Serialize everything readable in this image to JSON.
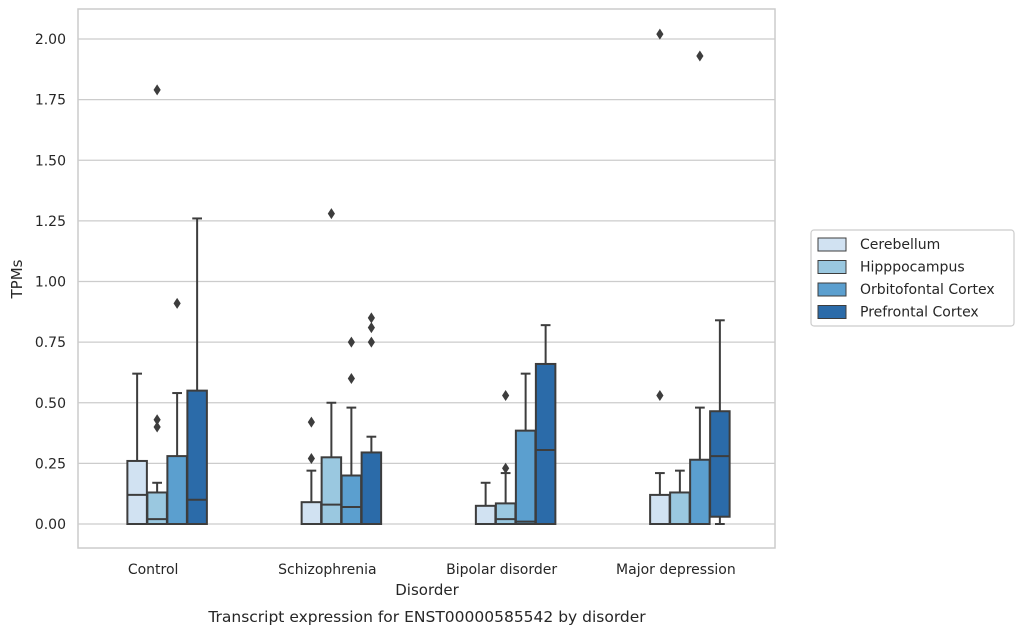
{
  "chart_data": {
    "type": "boxplot",
    "title": "Transcript expression for ENST00000585542 by disorder",
    "xlabel": "Disorder",
    "ylabel": "TPMs",
    "ylim": [
      -0.1,
      2.12
    ],
    "yticks": [
      "0.00",
      "0.25",
      "0.50",
      "0.75",
      "1.00",
      "1.25",
      "1.50",
      "1.75",
      "2.00"
    ],
    "categories": [
      "Control",
      "Schizophrenia",
      "Bipolar disorder",
      "Major depression"
    ],
    "grid": "horizontal",
    "legend_position": "right",
    "series": [
      {
        "name": "Cerebellum",
        "color": "#d1e2f2",
        "boxes": [
          {
            "whislo": 0.0,
            "q1": 0.0,
            "med": 0.12,
            "q3": 0.26,
            "whishi": 0.62,
            "fliers": []
          },
          {
            "whislo": 0.0,
            "q1": 0.0,
            "med": 0.0,
            "q3": 0.09,
            "whishi": 0.22,
            "fliers": [
              0.27,
              0.42
            ]
          },
          {
            "whislo": 0.0,
            "q1": 0.0,
            "med": 0.0,
            "q3": 0.075,
            "whishi": 0.17,
            "fliers": []
          },
          {
            "whislo": 0.0,
            "q1": 0.0,
            "med": 0.0,
            "q3": 0.12,
            "whishi": 0.21,
            "fliers": [
              0.53,
              2.02
            ]
          }
        ]
      },
      {
        "name": "Hipppocampus",
        "color": "#9ac8e0",
        "boxes": [
          {
            "whislo": 0.0,
            "q1": 0.0,
            "med": 0.02,
            "q3": 0.13,
            "whishi": 0.17,
            "fliers": [
              0.4,
              0.43,
              1.79
            ]
          },
          {
            "whislo": 0.0,
            "q1": 0.0,
            "med": 0.08,
            "q3": 0.275,
            "whishi": 0.5,
            "fliers": [
              1.28
            ]
          },
          {
            "whislo": 0.0,
            "q1": 0.0,
            "med": 0.02,
            "q3": 0.085,
            "whishi": 0.21,
            "fliers": [
              0.23,
              0.53
            ]
          },
          {
            "whislo": 0.0,
            "q1": 0.0,
            "med": 0.0,
            "q3": 0.13,
            "whishi": 0.22,
            "fliers": []
          }
        ]
      },
      {
        "name": "Orbitofontal Cortex",
        "color": "#5b9fcf",
        "boxes": [
          {
            "whislo": 0.0,
            "q1": 0.0,
            "med": 0.0,
            "q3": 0.28,
            "whishi": 0.54,
            "fliers": [
              0.91
            ]
          },
          {
            "whislo": 0.0,
            "q1": 0.0,
            "med": 0.07,
            "q3": 0.2,
            "whishi": 0.48,
            "fliers": [
              0.6,
              0.75
            ]
          },
          {
            "whislo": 0.0,
            "q1": 0.0,
            "med": 0.01,
            "q3": 0.385,
            "whishi": 0.62,
            "fliers": []
          },
          {
            "whislo": 0.0,
            "q1": 0.0,
            "med": 0.0,
            "q3": 0.265,
            "whishi": 0.48,
            "fliers": [
              1.93
            ]
          }
        ]
      },
      {
        "name": "Prefrontal Cortex",
        "color": "#2b6ba9",
        "boxes": [
          {
            "whislo": 0.0,
            "q1": 0.0,
            "med": 0.1,
            "q3": 0.55,
            "whishi": 1.26,
            "fliers": []
          },
          {
            "whislo": 0.0,
            "q1": 0.0,
            "med": 0.0,
            "q3": 0.295,
            "whishi": 0.36,
            "fliers": [
              0.75,
              0.81,
              0.85
            ]
          },
          {
            "whislo": 0.0,
            "q1": 0.0,
            "med": 0.305,
            "q3": 0.66,
            "whishi": 0.82,
            "fliers": []
          },
          {
            "whislo": 0.0,
            "q1": 0.03,
            "med": 0.28,
            "q3": 0.465,
            "whishi": 0.84,
            "fliers": []
          }
        ]
      }
    ]
  }
}
